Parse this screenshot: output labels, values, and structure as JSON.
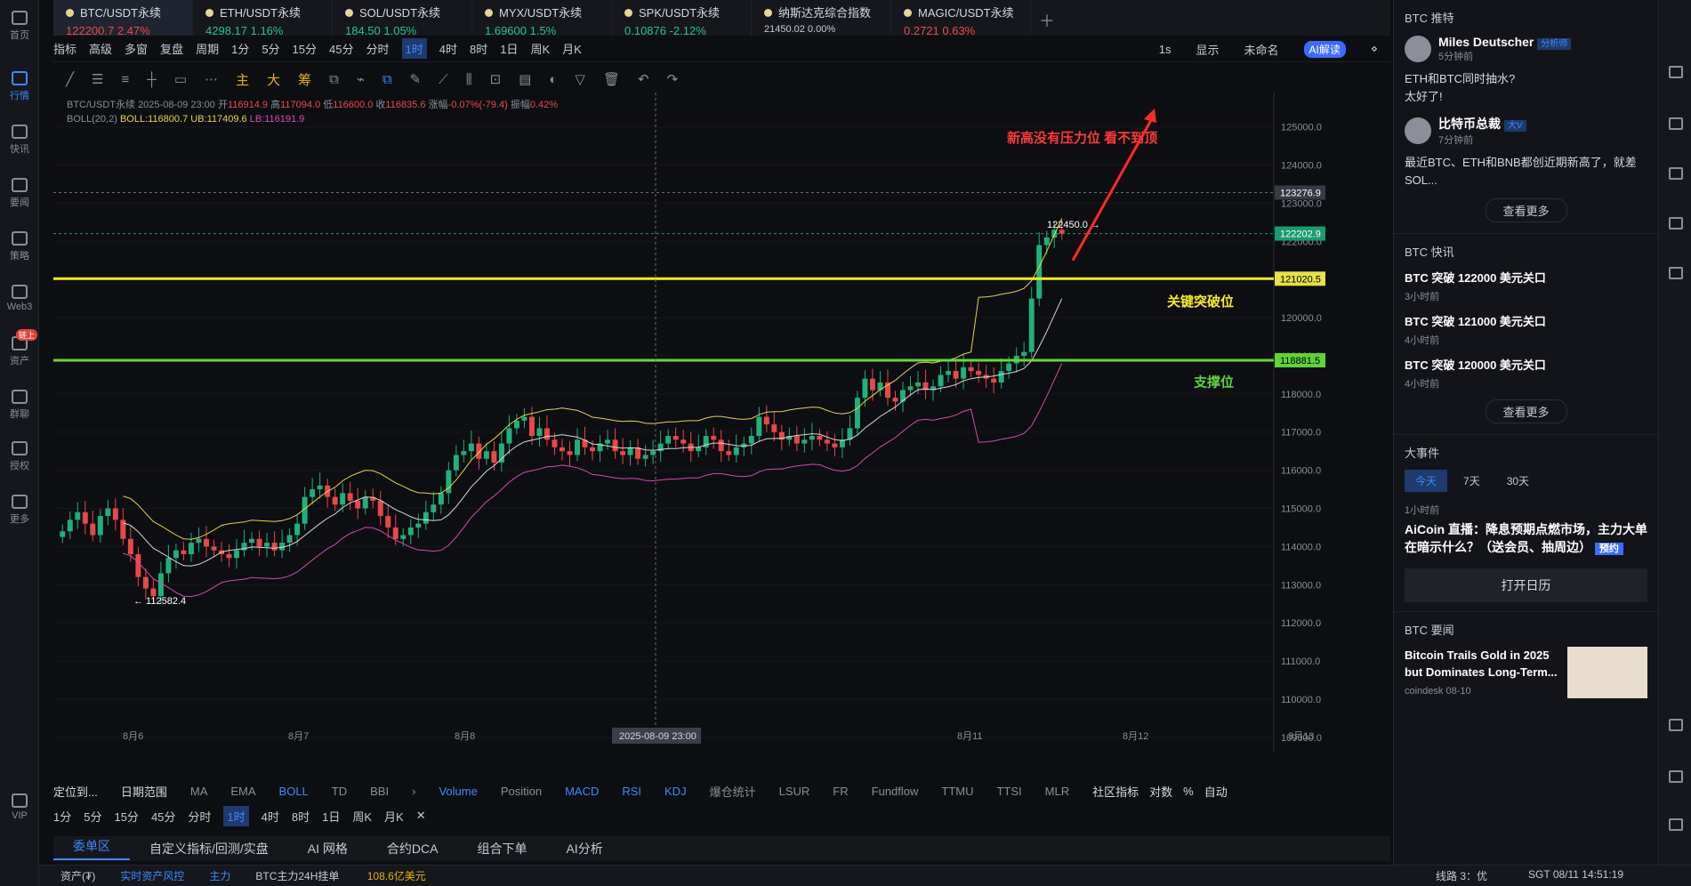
{
  "left_rail": [
    {
      "label": "首页",
      "icon": "home-icon"
    },
    {
      "label": "行情",
      "icon": "chart-bars-icon",
      "active": true
    },
    {
      "label": "快讯",
      "icon": "flash-news-icon"
    },
    {
      "label": "要闻",
      "icon": "news-icon"
    },
    {
      "label": "策略",
      "icon": "robot-icon"
    },
    {
      "label": "Web3",
      "icon": "web3-icon"
    },
    {
      "label": "资产",
      "icon": "wallet-icon",
      "badge": "链上"
    },
    {
      "label": "群聊",
      "icon": "chat-icon"
    },
    {
      "label": "授权",
      "icon": "key-icon"
    },
    {
      "label": "更多",
      "icon": "grid-icon"
    },
    {
      "label": "VIP",
      "icon": "vip-icon"
    }
  ],
  "tabs": [
    {
      "name": "BTC/USDT永续",
      "price": "122200.7",
      "change": "2.47%",
      "dir": "dn"
    },
    {
      "name": "ETH/USDT永续",
      "price": "4298.17",
      "change": "1.16%",
      "dir": "up"
    },
    {
      "name": "SOL/USDT永续",
      "price": "184.50",
      "change": "1.05%",
      "dir": "up"
    },
    {
      "name": "MYX/USDT永续",
      "price": "1.69600",
      "change": "1.5%",
      "dir": "up"
    },
    {
      "name": "SPK/USDT永续",
      "price": "0.10876",
      "change": "-2.12%",
      "dir": "up"
    },
    {
      "name": "纳斯达克综合指数",
      "price": "21450.02",
      "change": "0.00%",
      "dir": "none"
    },
    {
      "name": "MAGIC/USDT永续",
      "price": "0.2721",
      "change": "0.63%",
      "dir": "dn"
    }
  ],
  "toolbar": {
    "items": [
      "指标",
      "高级",
      "多窗",
      "复盘",
      "周期",
      "1分",
      "5分",
      "15分",
      "45分",
      "分时",
      "1时",
      "4时",
      "8时",
      "1日",
      "周K",
      "月K"
    ],
    "selected": "1时",
    "right": [
      "1s",
      "显示",
      "未命名",
      "AI解读"
    ]
  },
  "draw_toolbar": {
    "main": "主",
    "big": "大",
    "chips": "筹"
  },
  "legend": {
    "symbol": "BTC/USDT永续",
    "time": "2025-08-09 23:00",
    "open_label": "开",
    "open": "116914.9",
    "high_label": "高",
    "high": "117094.0",
    "low_label": "低",
    "low": "116600.0",
    "close_label": "收",
    "close": "116835.6",
    "chg_label": "涨幅",
    "chg": "-0.07%(-79.4)",
    "amp_label": "振幅",
    "amp": "0.42%",
    "boll_name": "BOLL(20,2)",
    "boll_mid": "BOLL:116800.7",
    "boll_ub": "UB:117409.6",
    "boll_lb": "LB:116191.9"
  },
  "chart_data": {
    "type": "candlestick",
    "y_ticks": [
      125000,
      124000,
      123000,
      122000,
      121000,
      120000,
      119000,
      118000,
      117000,
      116000,
      115000,
      114000,
      113000,
      112000,
      111000,
      110000,
      109000
    ],
    "ylim": [
      108600,
      125900
    ],
    "x_ticks": [
      "8月6",
      "8月7",
      "8月8",
      "8月9",
      "8月11",
      "8月12",
      "8月13"
    ],
    "crosshair_label": "2025-08-09 23:00",
    "annotations": {
      "high_label": "122450.0",
      "low_label": "112582.4",
      "note1": "新高没有压力位 看不到顶",
      "note2": "关键突破位",
      "note3": "支撑位"
    },
    "price_tags": [
      {
        "value": "123276.9",
        "color": "#363a45"
      },
      {
        "value": "122202.9",
        "color": "#1a9c6e"
      },
      {
        "value": "121020.5",
        "color": "#e6e04a"
      },
      {
        "value": "118881.5",
        "color": "#5fd33a"
      }
    ],
    "h_lines": [
      {
        "value": 121020.5,
        "color": "#f5ec1e"
      },
      {
        "value": 118881.5,
        "color": "#67d83b"
      }
    ],
    "close_series": [
      114400,
      114700,
      114900,
      114600,
      114300,
      114800,
      115000,
      114700,
      114200,
      113800,
      113200,
      112900,
      112700,
      113300,
      113700,
      113900,
      113800,
      114100,
      114200,
      114000,
      113900,
      113800,
      113700,
      113900,
      114100,
      114200,
      114000,
      114100,
      113900,
      114100,
      114300,
      114600,
      115300,
      115500,
      115600,
      115300,
      115100,
      115400,
      115200,
      115000,
      115300,
      115200,
      114800,
      114500,
      114200,
      114300,
      114500,
      114600,
      114900,
      115100,
      115400,
      116000,
      116400,
      116500,
      116700,
      116300,
      116500,
      116200,
      116700,
      117100,
      117300,
      117400,
      116900,
      117100,
      116800,
      116600,
      116500,
      116400,
      116800,
      116600,
      116500,
      116700,
      116800,
      116500,
      116400,
      116600,
      116300,
      116400,
      116500,
      116700,
      116900,
      116800,
      116700,
      116500,
      116600,
      116900,
      116800,
      116500,
      116400,
      116600,
      116700,
      116900,
      117400,
      117200,
      117000,
      116800,
      116900,
      116700,
      116800,
      116900,
      116800,
      116700,
      116600,
      116800,
      117100,
      117900,
      118400,
      118100,
      118300,
      117900,
      117800,
      118100,
      118200,
      118300,
      118100,
      118200,
      118500,
      118600,
      118400,
      118700,
      118600,
      118500,
      118400,
      118300,
      118600,
      118800,
      119000,
      119100,
      120500,
      121900,
      122100,
      122300,
      122200
    ]
  },
  "indicator_bar": {
    "left": [
      "定位到...",
      "日期范围",
      "MA",
      "EMA",
      "BOLL",
      "TD",
      "BBI"
    ],
    "right": [
      "Volume",
      "Position",
      "MACD",
      "RSI",
      "KDJ",
      "爆仓统计",
      "LSUR",
      "FR",
      "Fundflow",
      "TTMU",
      "TTSI",
      "MLR",
      "社区指标",
      "对数",
      "%",
      "自动"
    ]
  },
  "period_bar": [
    "1分",
    "5分",
    "15分",
    "45分",
    "分时",
    "1时",
    "4时",
    "8时",
    "1日",
    "周K",
    "月K"
  ],
  "bottom_tabs": [
    "委单区",
    "自定义指标/回测/实盘",
    "AI 网格",
    "合约DCA",
    "组合下单",
    "AI分析"
  ],
  "status": {
    "assets": "资产(₮)",
    "risk": "实时资产风控",
    "main": "主力",
    "main_text": "BTC主力24H挂单",
    "main_amt": "108.6亿美元",
    "line": "线路 3：优",
    "time": "SGT 08/11 14:51:19"
  },
  "right_panel": {
    "recommend_title": "BTC 推特",
    "posts": [
      {
        "author": "Miles Deutscher",
        "tag": "分析师",
        "time": "5分钟前",
        "text": "ETH和BTC同时抽水?<br>太好了!"
      },
      {
        "author": "比特币总裁",
        "tag": "大V",
        "time": "7分钟前",
        "text": "最近BTC、ETH和BNB都创近期新高了，就差SOL..."
      }
    ],
    "more": "查看更多",
    "flash_title": "BTC 快讯",
    "flashes": [
      {
        "title": "BTC 突破 122000 美元关口",
        "ago": "3小时前"
      },
      {
        "title": "BTC 突破 121000 美元关口",
        "ago": "4小时前"
      },
      {
        "title": "BTC 突破 120000 美元关口",
        "ago": "4小时前"
      }
    ],
    "events_title": "大事件",
    "event_tabs": [
      "今天",
      "7天",
      "30天"
    ],
    "event_time": "1小时前",
    "event_title": "AiCoin 直播：降息预期点燃市场，主力大单在暗示什么？（送会员、抽周边）",
    "event_badge": "预约",
    "calendar_btn": "打开日历",
    "news_title": "BTC 要闻",
    "news_item": "Bitcoin Trails Gold in 2025 but Dominates Long-Term...",
    "news_src": "coindesk 08-10"
  }
}
